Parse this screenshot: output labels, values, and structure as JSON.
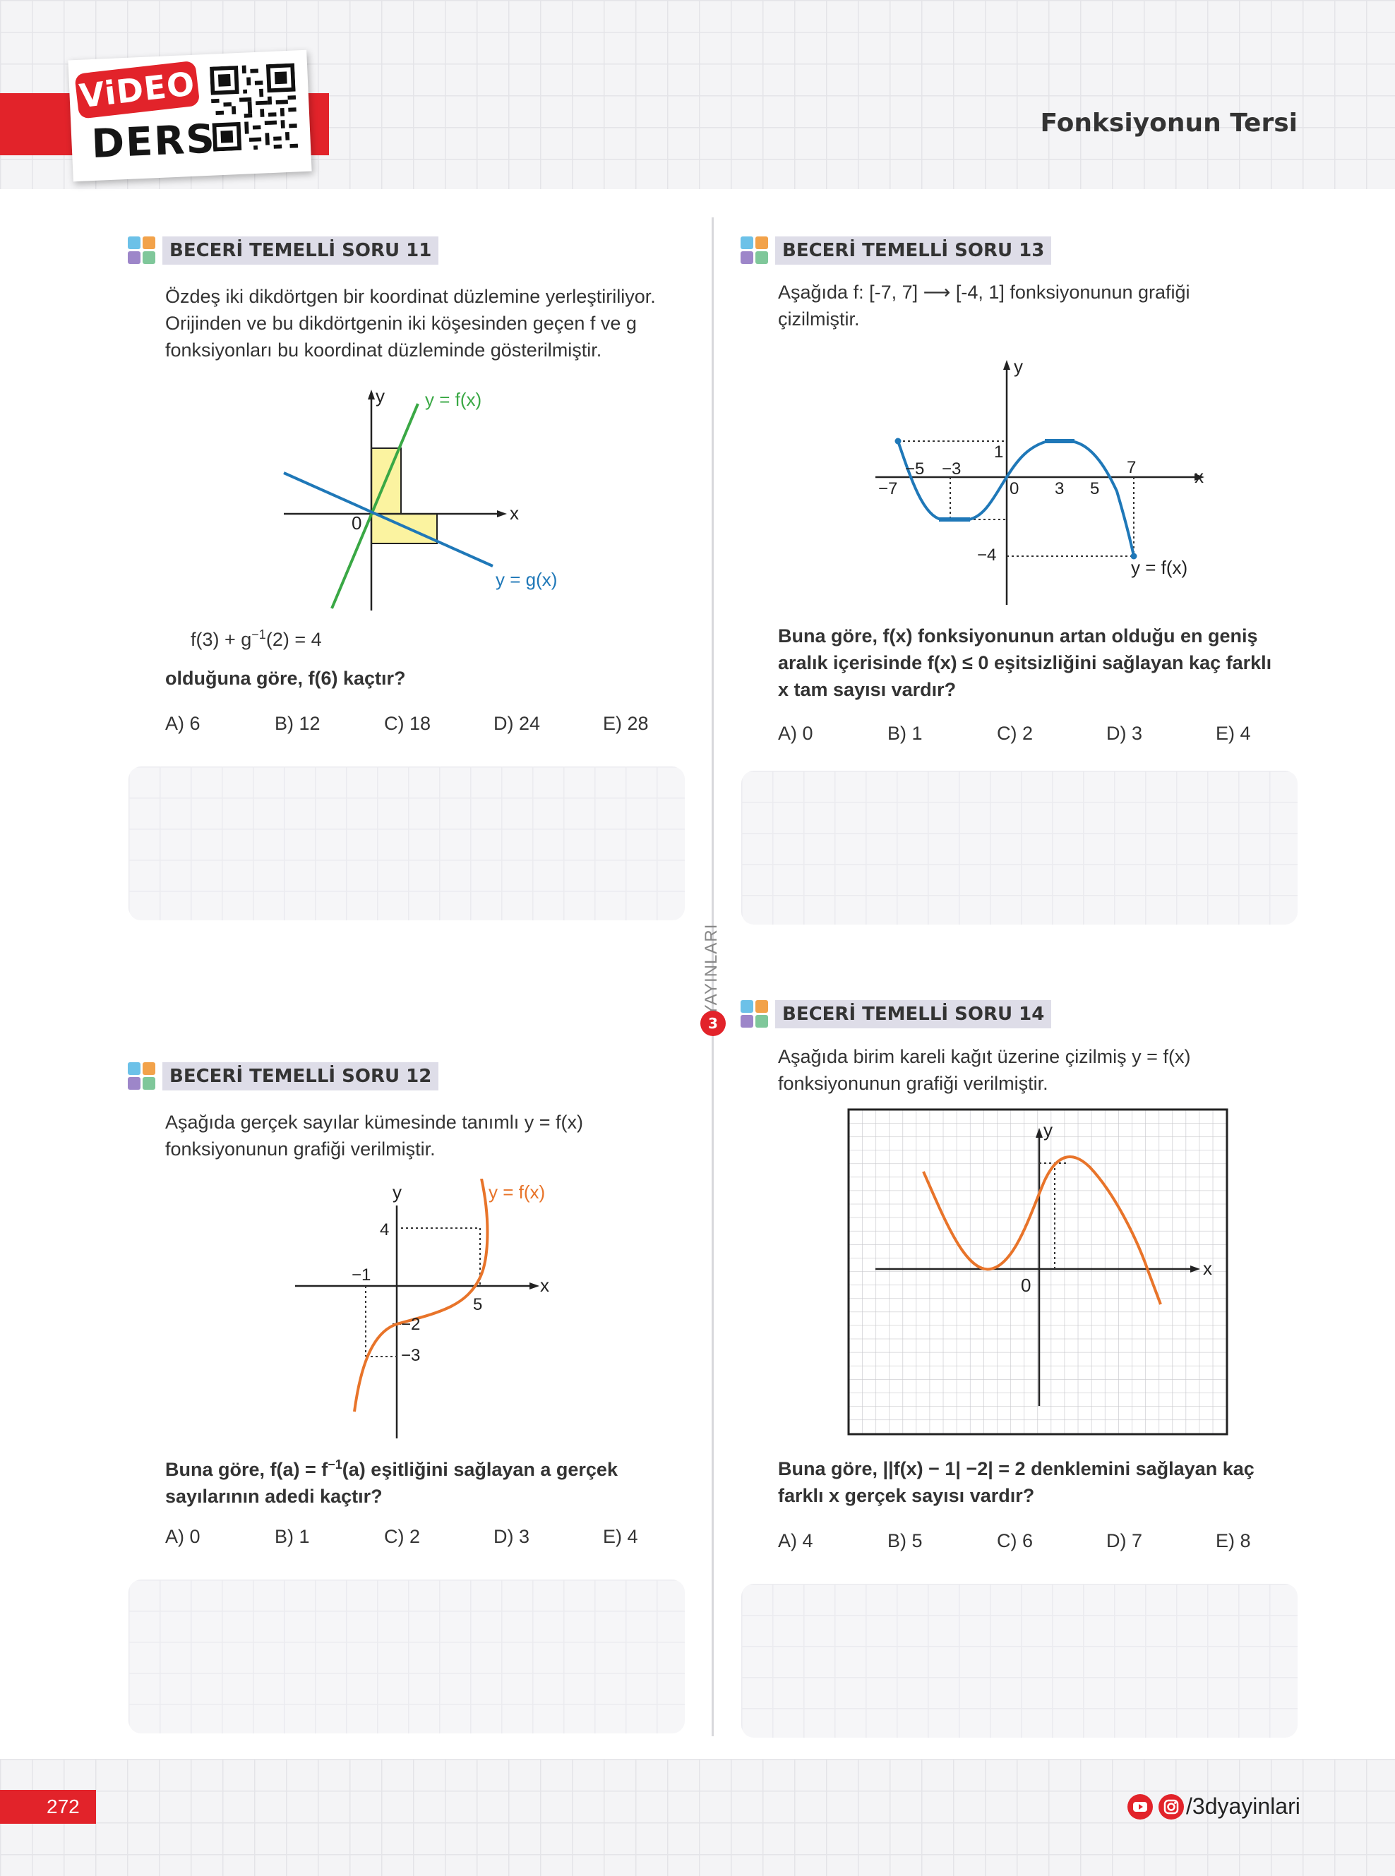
{
  "header": {
    "logo_video": "ViDEO",
    "logo_ders": "DERS",
    "unit_title": "Fonksiyonun Tersi"
  },
  "publisher_vertical": "YAYINLARI",
  "publisher_mark": "3",
  "q11": {
    "label": "BECERİ TEMELLİ SORU 11",
    "text": [
      "Özdeş iki dikdörtgen bir koordinat düzlemine yerleştiriliyor.",
      "Orijinden ve bu dikdörtgenin iki köşesinden geçen f ve g",
      "fonksiyonları bu koordinat düzleminde gösterilmiştir."
    ],
    "graph": {
      "f_label": "y = f(x)",
      "g_label": "y = g(x)",
      "x": "x",
      "y": "y",
      "origin": "0"
    },
    "eq_main": "f(3) + g",
    "eq_sup": "−1",
    "eq_rest": "(2) = 4",
    "question": "olduğuna göre, f(6) kaçtır?",
    "choices": [
      "A) 6",
      "B) 12",
      "C) 18",
      "D) 24",
      "E) 28"
    ]
  },
  "q12": {
    "label": "BECERİ TEMELLİ SORU 12",
    "text": [
      "Aşağıda gerçek sayılar kümesinde tanımlı y = f(x)",
      "fonksiyonunun grafiği verilmiştir."
    ],
    "graph": {
      "f_label": "y = f(x)",
      "x": "x",
      "y": "y",
      "t4": "4",
      "tm1": "−1",
      "t5": "5",
      "tm2": "−2",
      "tm3": "−3"
    },
    "question_pre": "Buna göre, f(a) = f",
    "question_sup": "−1",
    "question_post": "(a) eşitliğini sağlayan a gerçek",
    "question_line2": "sayılarının adedi kaçtır?",
    "choices": [
      "A) 0",
      "B) 1",
      "C) 2",
      "D) 3",
      "E) 4"
    ]
  },
  "q13": {
    "label": "BECERİ TEMELLİ SORU 13",
    "text": [
      "Aşağıda f: [-7, 7] ⟶ [-4, 1] fonksiyonunun grafiği",
      "çizilmiştir."
    ],
    "graph": {
      "f_label": "y = f(x)",
      "x": "x",
      "y": "y",
      "t1": "1",
      "tm4": "−4",
      "tm7": "−7",
      "tm5": "−5",
      "tm3": "−3",
      "t0": "0",
      "t3": "3",
      "t5": "5",
      "t7": "7"
    },
    "question": [
      "Buna göre, f(x) fonksiyonunun artan olduğu en geniş",
      "aralık içerisinde f(x) ≤ 0 eşitsizliğini sağlayan kaç farklı",
      "x tam sayısı vardır?"
    ],
    "choices": [
      "A) 0",
      "B) 1",
      "C) 2",
      "D) 3",
      "E) 4"
    ]
  },
  "q14": {
    "label": "BECERİ TEMELLİ SORU 14",
    "text": [
      "Aşağıda birim kareli kağıt üzerine çizilmiş y = f(x)",
      "fonksiyonunun grafiği verilmiştir."
    ],
    "graph": {
      "x": "x",
      "y": "y",
      "origin": "0"
    },
    "question": [
      "Buna göre, ||f(x) − 1| −2| = 2 denklemini sağlayan kaç",
      "farklı x gerçek sayısı vardır?"
    ],
    "choices": [
      "A) 4",
      "B) 5",
      "C) 6",
      "D) 7",
      "E) 8"
    ]
  },
  "footer": {
    "page_number": "272",
    "social_handle": "/3dyayinlari"
  },
  "colors": {
    "brand_red": "#e2232a",
    "green_line": "#3aa845",
    "blue_line": "#1f78b8",
    "orange_curve": "#e8742a",
    "rect_fill": "#fbf3a0",
    "label_bg": "#dedde8"
  }
}
